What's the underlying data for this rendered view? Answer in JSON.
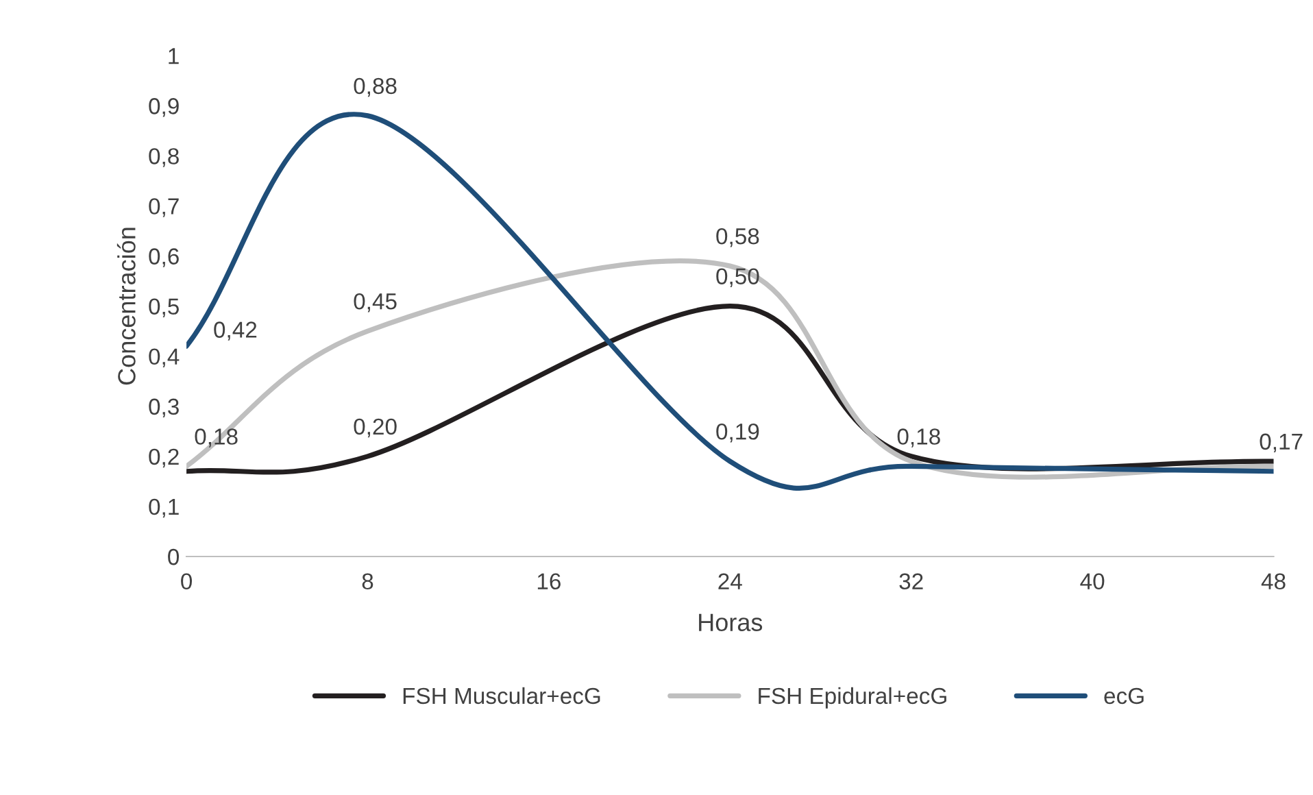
{
  "chart_data": {
    "type": "line",
    "xlabel": "Horas",
    "ylabel": "Concentración",
    "x": [
      0,
      8,
      24,
      32,
      48
    ],
    "xlim": [
      0,
      48
    ],
    "xticks": [
      0,
      8,
      16,
      24,
      32,
      40,
      48
    ],
    "ylim": [
      0,
      1
    ],
    "yticks": [
      0,
      {
        "value": 0.1,
        "label": "0,1"
      },
      {
        "value": 0.2,
        "label": "0,2"
      },
      {
        "value": 0.3,
        "label": "0,3"
      },
      {
        "value": 0.4,
        "label": "0,4"
      },
      {
        "value": 0.5,
        "label": "0,5"
      },
      {
        "value": 0.6,
        "label": "0,6"
      },
      {
        "value": 0.7,
        "label": "0,7"
      },
      {
        "value": 0.8,
        "label": "0,8"
      },
      {
        "value": 0.9,
        "label": "0,9"
      },
      1
    ],
    "series": [
      {
        "name": "FSH Muscular+ecG",
        "color": "#231f20",
        "values": [
          0.17,
          0.2,
          0.5,
          0.2,
          0.19
        ],
        "value_labels": [
          null,
          "0,20",
          "0,50",
          null,
          null
        ]
      },
      {
        "name": "FSH Epidural+ecG",
        "color": "#bfbfbf",
        "values": [
          0.18,
          0.45,
          0.58,
          0.19,
          0.18
        ],
        "value_labels": [
          "0,18",
          "0,45",
          "0,58",
          null,
          null
        ]
      },
      {
        "name": "ecG",
        "color": "#1f4e79",
        "values": [
          0.42,
          0.88,
          0.19,
          0.18,
          0.17
        ],
        "value_labels": [
          "0,42",
          "0,88",
          "0,19",
          "0,18",
          "0,17"
        ]
      }
    ],
    "grid": false,
    "legend": "bottom",
    "marker": "none",
    "line_style": "solid"
  }
}
